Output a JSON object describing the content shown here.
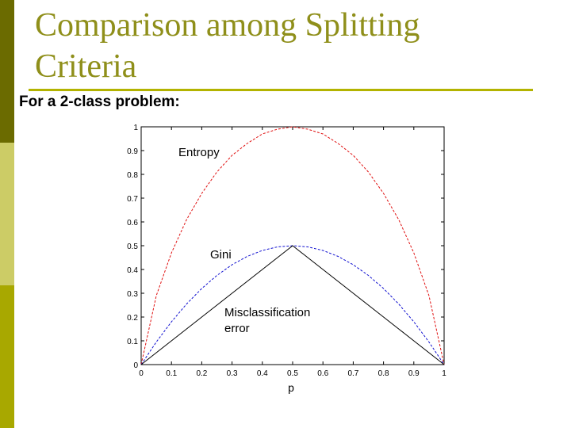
{
  "slide": {
    "title_line1": "Comparison among Splitting",
    "title_line2": "Criteria",
    "subtitle": "For a 2-class problem:"
  },
  "colors": {
    "sidebar_dark": "#6b6b00",
    "sidebar_light": "#cccc66",
    "sidebar_mid": "#a8a800",
    "title": "#8f8f1a",
    "rule": "#b3b300",
    "entropy": "#e01010",
    "gini": "#1010d0",
    "misclassification": "#000000"
  },
  "chart_data": {
    "type": "line",
    "xlabel": "p",
    "ylabel": "",
    "xlim": [
      0,
      1
    ],
    "ylim": [
      0,
      1
    ],
    "x_ticks": [
      "0",
      "0.1",
      "0.2",
      "0.3",
      "0.4",
      "0.5",
      "0.6",
      "0.7",
      "0.8",
      "0.9",
      "1"
    ],
    "y_ticks": [
      "0",
      "0.1",
      "0.2",
      "0.3",
      "0.4",
      "0.5",
      "0.6",
      "0.7",
      "0.8",
      "0.9",
      "1"
    ],
    "x": [
      0,
      0.05,
      0.1,
      0.15,
      0.2,
      0.25,
      0.3,
      0.35,
      0.4,
      0.45,
      0.5,
      0.55,
      0.6,
      0.65,
      0.7,
      0.75,
      0.8,
      0.85,
      0.9,
      0.95,
      1
    ],
    "series": [
      {
        "name": "Entropy",
        "values": [
          0,
          0.29,
          0.47,
          0.61,
          0.72,
          0.81,
          0.88,
          0.93,
          0.97,
          0.99,
          1.0,
          0.99,
          0.97,
          0.93,
          0.88,
          0.81,
          0.72,
          0.61,
          0.47,
          0.29,
          0
        ]
      },
      {
        "name": "Gini",
        "values": [
          0,
          0.095,
          0.18,
          0.255,
          0.32,
          0.375,
          0.42,
          0.455,
          0.48,
          0.495,
          0.5,
          0.495,
          0.48,
          0.455,
          0.42,
          0.375,
          0.32,
          0.255,
          0.18,
          0.095,
          0
        ]
      },
      {
        "name": "Misclassification error",
        "label_lines": [
          "Misclassification",
          "error"
        ],
        "values": [
          0,
          0.05,
          0.1,
          0.15,
          0.2,
          0.25,
          0.3,
          0.35,
          0.4,
          0.45,
          0.5,
          0.45,
          0.4,
          0.35,
          0.3,
          0.25,
          0.2,
          0.15,
          0.1,
          0.05,
          0
        ]
      }
    ],
    "grid": false,
    "legend": "none"
  }
}
